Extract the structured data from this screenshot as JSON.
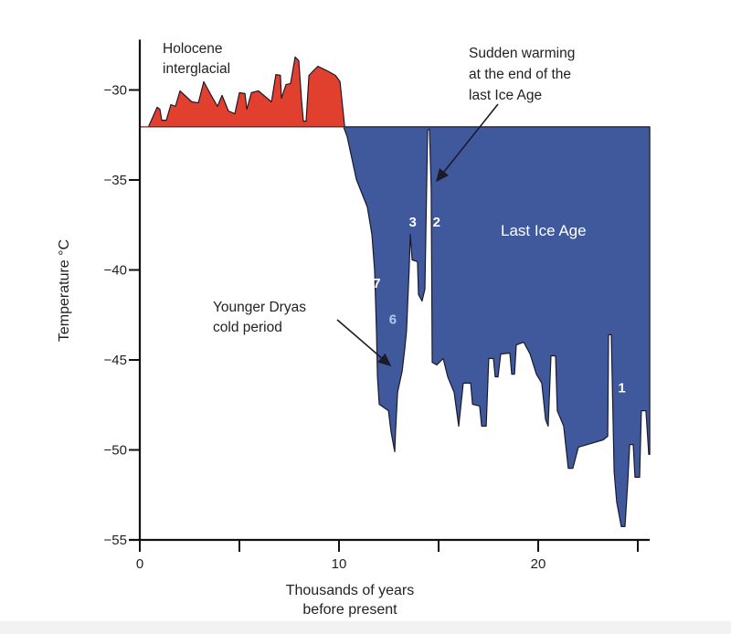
{
  "chart_data": {
    "type": "area",
    "title": "",
    "xlabel": [
      "Thousands of years",
      "before present"
    ],
    "ylabel": "Temperature °C",
    "xlim": [
      0,
      25.6
    ],
    "ylim": [
      -55,
      -27.2
    ],
    "x_ticks": [
      0,
      5,
      10,
      15,
      20,
      25
    ],
    "x_tick_labels": [
      "0",
      "",
      "10",
      "",
      "20",
      ""
    ],
    "y_ticks": [
      -30,
      -35,
      -40,
      -45,
      -50,
      -55
    ],
    "y_tick_labels": [
      "−30",
      "−35",
      "−40",
      "−45",
      "−50",
      "−55"
    ],
    "grid": false,
    "baseline": -32.05,
    "colors": {
      "warm": "#e2402f",
      "cold": "#40599c",
      "outline": "#1a1a2a"
    },
    "series": [
      {
        "region": "warm",
        "points": [
          [
            0.46,
            -32.05
          ],
          [
            0.46,
            -31.98
          ],
          [
            0.87,
            -30.96
          ],
          [
            1.01,
            -31.07
          ],
          [
            1.1,
            -31.68
          ],
          [
            1.33,
            -31.68
          ],
          [
            1.56,
            -30.81
          ],
          [
            1.79,
            -30.91
          ],
          [
            2.02,
            -30.05
          ],
          [
            2.61,
            -30.66
          ],
          [
            2.94,
            -30.71
          ],
          [
            3.21,
            -29.54
          ],
          [
            3.53,
            -30.2
          ],
          [
            3.9,
            -30.91
          ],
          [
            4.13,
            -30.3
          ],
          [
            4.45,
            -31.17
          ],
          [
            4.77,
            -31.32
          ],
          [
            5.0,
            -30.15
          ],
          [
            5.28,
            -30.2
          ],
          [
            5.37,
            -31.07
          ],
          [
            5.6,
            -30.15
          ],
          [
            5.96,
            -30.05
          ],
          [
            6.61,
            -30.66
          ],
          [
            6.83,
            -29.14
          ],
          [
            7.06,
            -29.19
          ],
          [
            7.11,
            -30.46
          ],
          [
            7.34,
            -29.7
          ],
          [
            7.57,
            -29.64
          ],
          [
            7.8,
            -28.17
          ],
          [
            7.98,
            -28.38
          ],
          [
            8.12,
            -30.56
          ],
          [
            8.21,
            -31.73
          ],
          [
            8.35,
            -31.73
          ],
          [
            8.49,
            -29.19
          ],
          [
            8.94,
            -28.68
          ],
          [
            9.4,
            -28.93
          ],
          [
            9.82,
            -29.19
          ],
          [
            10.05,
            -29.54
          ],
          [
            10.28,
            -31.98
          ],
          [
            10.3,
            -32.05
          ]
        ]
      },
      {
        "region": "cold",
        "points": [
          [
            10.23,
            -32.05
          ],
          [
            10.41,
            -32.59
          ],
          [
            10.87,
            -34.97
          ],
          [
            11.42,
            -36.5
          ],
          [
            11.65,
            -38.02
          ],
          [
            11.79,
            -40.05
          ],
          [
            11.88,
            -43.4
          ],
          [
            11.93,
            -45.94
          ],
          [
            12.02,
            -47.46
          ],
          [
            12.48,
            -47.82
          ],
          [
            12.61,
            -48.98
          ],
          [
            12.8,
            -50.1
          ],
          [
            12.84,
            -48.98
          ],
          [
            12.94,
            -46.8
          ],
          [
            13.17,
            -45.63
          ],
          [
            13.3,
            -44.42
          ],
          [
            13.39,
            -43.4
          ],
          [
            13.53,
            -39.7
          ],
          [
            13.58,
            -38.02
          ],
          [
            13.67,
            -39.44
          ],
          [
            13.94,
            -39.54
          ],
          [
            13.99,
            -41.37
          ],
          [
            14.17,
            -41.73
          ],
          [
            14.31,
            -41.07
          ],
          [
            14.45,
            -32.23
          ],
          [
            14.54,
            -32.18
          ],
          [
            14.63,
            -35.48
          ],
          [
            14.68,
            -45.13
          ],
          [
            14.91,
            -45.28
          ],
          [
            15.23,
            -44.92
          ],
          [
            15.46,
            -45.94
          ],
          [
            15.78,
            -46.8
          ],
          [
            16.01,
            -48.68
          ],
          [
            16.24,
            -46.29
          ],
          [
            16.61,
            -46.29
          ],
          [
            16.7,
            -47.46
          ],
          [
            17.06,
            -47.56
          ],
          [
            17.16,
            -48.68
          ],
          [
            17.39,
            -48.68
          ],
          [
            17.52,
            -44.92
          ],
          [
            17.75,
            -44.92
          ],
          [
            17.84,
            -45.94
          ],
          [
            17.98,
            -45.94
          ],
          [
            18.12,
            -44.67
          ],
          [
            18.58,
            -44.62
          ],
          [
            18.67,
            -45.79
          ],
          [
            18.81,
            -45.79
          ],
          [
            18.9,
            -44.16
          ],
          [
            19.27,
            -44.01
          ],
          [
            19.59,
            -44.67
          ],
          [
            19.91,
            -45.79
          ],
          [
            20.18,
            -46.29
          ],
          [
            20.37,
            -48.32
          ],
          [
            20.5,
            -48.68
          ],
          [
            20.64,
            -44.77
          ],
          [
            20.87,
            -44.77
          ],
          [
            20.96,
            -47.82
          ],
          [
            21.28,
            -48.68
          ],
          [
            21.51,
            -51.02
          ],
          [
            21.74,
            -51.02
          ],
          [
            22.02,
            -49.85
          ],
          [
            22.48,
            -49.7
          ],
          [
            23.26,
            -49.44
          ],
          [
            23.49,
            -49.24
          ],
          [
            23.53,
            -43.6
          ],
          [
            23.67,
            -43.6
          ],
          [
            23.81,
            -51.22
          ],
          [
            23.94,
            -52.89
          ],
          [
            24.17,
            -54.26
          ],
          [
            24.36,
            -54.26
          ],
          [
            24.5,
            -51.73
          ],
          [
            24.59,
            -49.7
          ],
          [
            24.77,
            -49.7
          ],
          [
            24.86,
            -51.52
          ],
          [
            25.09,
            -51.52
          ],
          [
            25.18,
            -47.82
          ],
          [
            25.41,
            -47.82
          ],
          [
            25.55,
            -50.25
          ],
          [
            25.6,
            -50.25
          ],
          [
            25.6,
            -32.05
          ]
        ]
      }
    ],
    "annotations": {
      "holocene": [
        "Holocene",
        "interglacial"
      ],
      "sudden_warming": [
        "Sudden warming",
        "at the end of the",
        "last Ice Age"
      ],
      "last_ice_age": "Last Ice Age",
      "younger_dryas": [
        "Younger Dryas",
        "cold period"
      ],
      "event_numbers": [
        {
          "label": "3",
          "x": 13.7,
          "y": -37.6,
          "color": "#ffffff"
        },
        {
          "label": "2",
          "x": 14.9,
          "y": -37.6,
          "color": "#ffffff"
        },
        {
          "label": "7",
          "x": 11.9,
          "y": -41.0,
          "color": "#ffffff"
        },
        {
          "label": "6",
          "x": 12.7,
          "y": -43.0,
          "color": "#a9cdf2"
        },
        {
          "label": "1",
          "x": 24.2,
          "y": -46.8,
          "color": "#ffffff"
        }
      ]
    }
  }
}
